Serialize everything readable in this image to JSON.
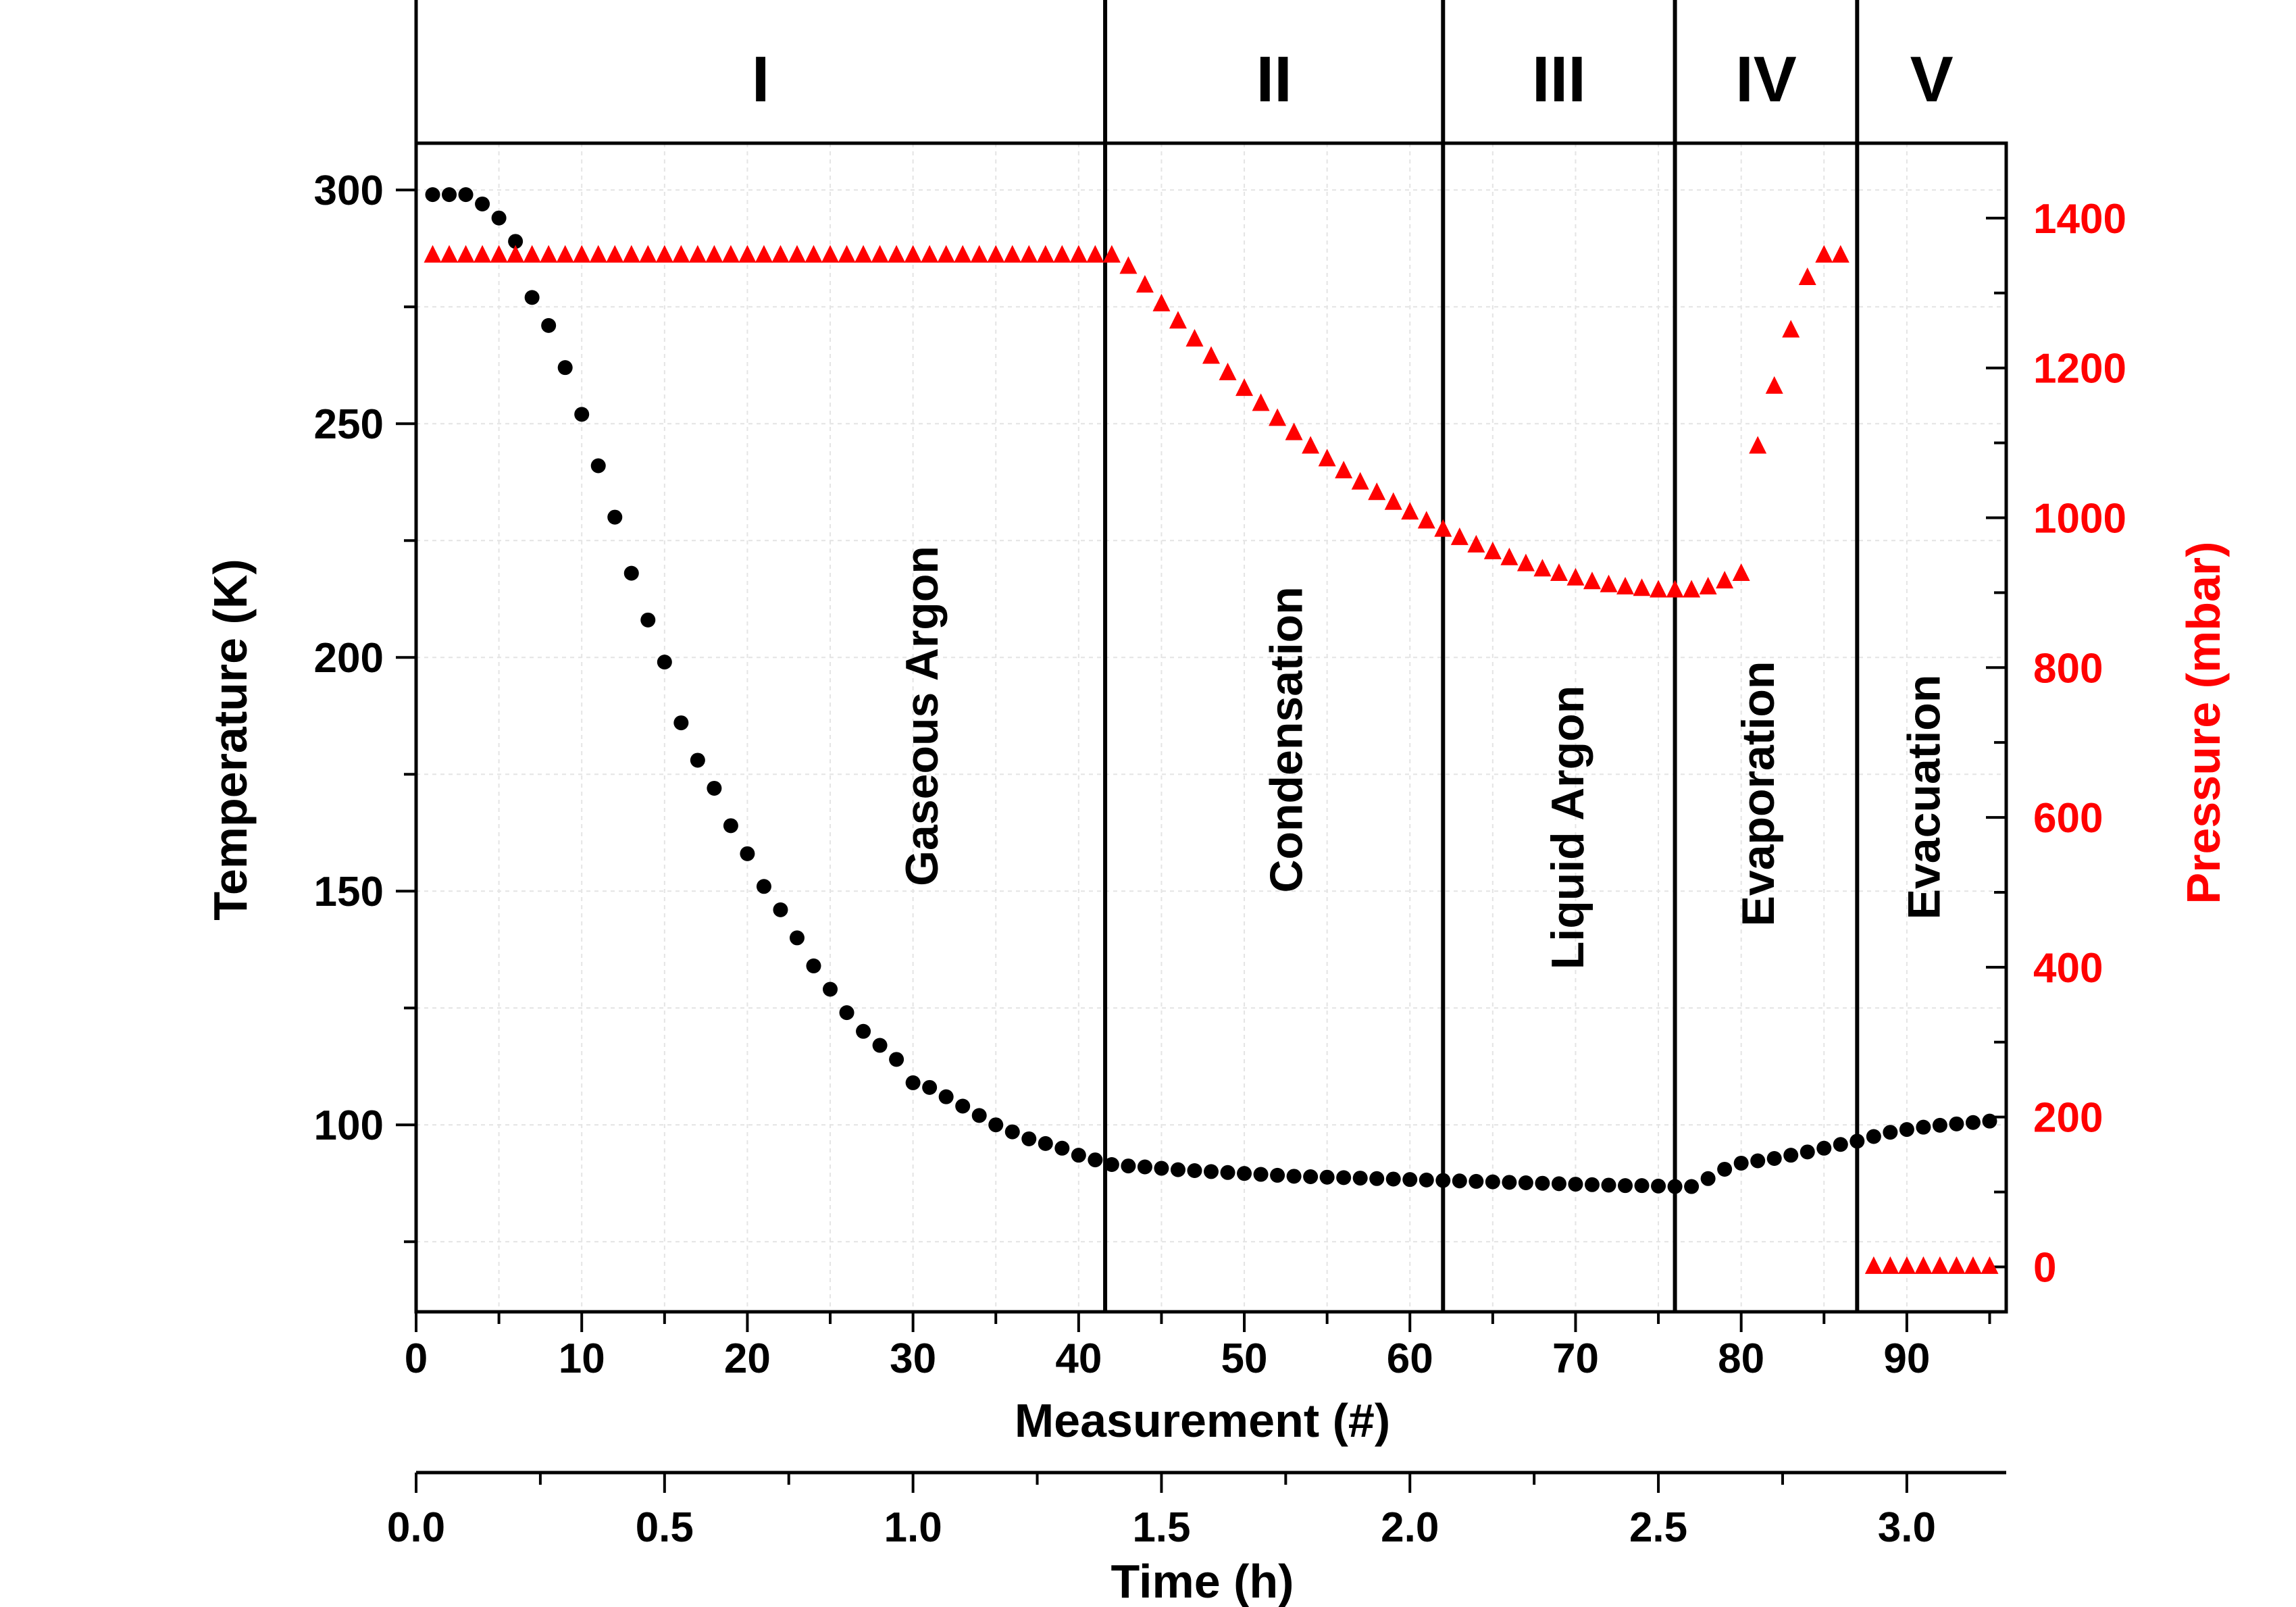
{
  "chart_data": {
    "type": "scatter",
    "x_axis": {
      "label": "Measurement (#)",
      "range": [
        0,
        96
      ],
      "ticks": [
        0,
        10,
        20,
        30,
        40,
        50,
        60,
        70,
        80,
        90
      ],
      "tick_labels": [
        "0",
        "10",
        "20",
        "30",
        "40",
        "50",
        "60",
        "70",
        "80",
        "90"
      ]
    },
    "secondary_x_axis": {
      "label": "Time (h)",
      "range": [
        0,
        3.2
      ],
      "ticks": [
        0,
        0.5,
        1.0,
        1.5,
        2.0,
        2.5,
        3.0
      ],
      "tick_labels": [
        "0.0",
        "0.5",
        "1.0",
        "1.5",
        "2.0",
        "2.5",
        "3.0"
      ]
    },
    "y_axis_left": {
      "label": "Temperature (K)",
      "range": [
        60,
        310
      ],
      "ticks": [
        100,
        150,
        200,
        250,
        300
      ],
      "tick_labels": [
        "100",
        "150",
        "200",
        "250",
        "300"
      ]
    },
    "y_axis_right": {
      "label": "Pressure (mbar)",
      "range": [
        -60,
        1500
      ],
      "ticks": [
        0,
        200,
        400,
        600,
        800,
        1000,
        1200,
        1400
      ],
      "tick_labels": [
        "0",
        "200",
        "400",
        "600",
        "800",
        "1000",
        "1200",
        "1400"
      ],
      "color": "#ff0000"
    },
    "phase_boundaries": [
      41.6,
      62,
      76,
      87
    ],
    "phases": [
      {
        "numeral": "I",
        "label": "Gaseous Argon",
        "start": 0,
        "end": 41.6
      },
      {
        "numeral": "II",
        "label": "Condensation",
        "start": 41.6,
        "end": 62
      },
      {
        "numeral": "III",
        "label": "Liquid Argon",
        "start": 62,
        "end": 76
      },
      {
        "numeral": "IV",
        "label": "Evaporation",
        "start": 76,
        "end": 87
      },
      {
        "numeral": "V",
        "label": "Evacuation",
        "start": 87,
        "end": 96
      }
    ],
    "series": [
      {
        "name": "Temperature",
        "axis": "left",
        "marker": "circle",
        "color": "#000000",
        "points": [
          [
            1,
            299
          ],
          [
            2,
            299
          ],
          [
            3,
            299
          ],
          [
            4,
            297
          ],
          [
            5,
            294
          ],
          [
            6,
            289
          ],
          [
            7,
            277
          ],
          [
            8,
            271
          ],
          [
            9,
            262
          ],
          [
            10,
            252
          ],
          [
            11,
            241
          ],
          [
            12,
            230
          ],
          [
            13,
            218
          ],
          [
            14,
            208
          ],
          [
            15,
            199
          ],
          [
            16,
            186
          ],
          [
            17,
            178
          ],
          [
            18,
            172
          ],
          [
            19,
            164
          ],
          [
            20,
            158
          ],
          [
            21,
            151
          ],
          [
            22,
            146
          ],
          [
            23,
            140
          ],
          [
            24,
            134
          ],
          [
            25,
            129
          ],
          [
            26,
            124
          ],
          [
            27,
            120
          ],
          [
            28,
            117
          ],
          [
            29,
            114
          ],
          [
            30,
            109
          ],
          [
            31,
            108
          ],
          [
            32,
            106
          ],
          [
            33,
            104
          ],
          [
            34,
            102
          ],
          [
            35,
            100
          ],
          [
            36,
            98.5
          ],
          [
            37,
            97
          ],
          [
            38,
            96
          ],
          [
            39,
            95
          ],
          [
            40,
            93.5
          ],
          [
            41,
            92.5
          ],
          [
            42,
            91.5
          ],
          [
            43,
            91.2
          ],
          [
            44,
            91
          ],
          [
            45,
            90.7
          ],
          [
            46,
            90.4
          ],
          [
            47,
            90.2
          ],
          [
            48,
            90
          ],
          [
            49,
            89.8
          ],
          [
            50,
            89.6
          ],
          [
            51,
            89.4
          ],
          [
            52,
            89.2
          ],
          [
            53,
            89
          ],
          [
            54,
            88.9
          ],
          [
            55,
            88.8
          ],
          [
            56,
            88.7
          ],
          [
            57,
            88.6
          ],
          [
            58,
            88.5
          ],
          [
            59,
            88.4
          ],
          [
            60,
            88.3
          ],
          [
            61,
            88.2
          ],
          [
            62,
            88.1
          ],
          [
            63,
            88
          ],
          [
            64,
            87.9
          ],
          [
            65,
            87.8
          ],
          [
            66,
            87.7
          ],
          [
            67,
            87.6
          ],
          [
            68,
            87.5
          ],
          [
            69,
            87.4
          ],
          [
            70,
            87.3
          ],
          [
            71,
            87.2
          ],
          [
            72,
            87.1
          ],
          [
            73,
            87
          ],
          [
            74,
            87
          ],
          [
            75,
            86.9
          ],
          [
            76,
            86.8
          ],
          [
            77,
            86.8
          ],
          [
            78,
            88.5
          ],
          [
            79,
            90.5
          ],
          [
            80,
            91.8
          ],
          [
            81,
            92.3
          ],
          [
            82,
            92.8
          ],
          [
            83,
            93.5
          ],
          [
            84,
            94.2
          ],
          [
            85,
            95
          ],
          [
            86,
            95.8
          ],
          [
            87,
            96.5
          ],
          [
            88,
            97.5
          ],
          [
            89,
            98.4
          ],
          [
            90,
            99
          ],
          [
            91,
            99.5
          ],
          [
            92,
            99.9
          ],
          [
            93,
            100.2
          ],
          [
            94,
            100.5
          ],
          [
            95,
            100.8
          ]
        ]
      },
      {
        "name": "Pressure",
        "axis": "right",
        "marker": "triangle",
        "color": "#ff0000",
        "points": [
          [
            1,
            1350
          ],
          [
            2,
            1350
          ],
          [
            3,
            1350
          ],
          [
            4,
            1350
          ],
          [
            5,
            1350
          ],
          [
            6,
            1350
          ],
          [
            7,
            1350
          ],
          [
            8,
            1350
          ],
          [
            9,
            1350
          ],
          [
            10,
            1350
          ],
          [
            11,
            1350
          ],
          [
            12,
            1350
          ],
          [
            13,
            1350
          ],
          [
            14,
            1350
          ],
          [
            15,
            1350
          ],
          [
            16,
            1350
          ],
          [
            17,
            1350
          ],
          [
            18,
            1350
          ],
          [
            19,
            1350
          ],
          [
            20,
            1350
          ],
          [
            21,
            1350
          ],
          [
            22,
            1350
          ],
          [
            23,
            1350
          ],
          [
            24,
            1350
          ],
          [
            25,
            1350
          ],
          [
            26,
            1350
          ],
          [
            27,
            1350
          ],
          [
            28,
            1350
          ],
          [
            29,
            1350
          ],
          [
            30,
            1350
          ],
          [
            31,
            1350
          ],
          [
            32,
            1350
          ],
          [
            33,
            1350
          ],
          [
            34,
            1350
          ],
          [
            35,
            1350
          ],
          [
            36,
            1350
          ],
          [
            37,
            1350
          ],
          [
            38,
            1350
          ],
          [
            39,
            1350
          ],
          [
            40,
            1350
          ],
          [
            41,
            1350
          ],
          [
            42,
            1350
          ],
          [
            43,
            1335
          ],
          [
            44,
            1310
          ],
          [
            45,
            1285
          ],
          [
            46,
            1262
          ],
          [
            47,
            1238
          ],
          [
            48,
            1215
          ],
          [
            49,
            1193
          ],
          [
            50,
            1172
          ],
          [
            51,
            1152
          ],
          [
            52,
            1132
          ],
          [
            53,
            1113
          ],
          [
            54,
            1095
          ],
          [
            55,
            1078
          ],
          [
            56,
            1062
          ],
          [
            57,
            1047
          ],
          [
            58,
            1033
          ],
          [
            59,
            1020
          ],
          [
            60,
            1007
          ],
          [
            61,
            995
          ],
          [
            62,
            984
          ],
          [
            63,
            973
          ],
          [
            64,
            963
          ],
          [
            65,
            954
          ],
          [
            66,
            946
          ],
          [
            67,
            938
          ],
          [
            68,
            931
          ],
          [
            69,
            925
          ],
          [
            70,
            919
          ],
          [
            71,
            914
          ],
          [
            72,
            910
          ],
          [
            73,
            907
          ],
          [
            74,
            905
          ],
          [
            75,
            903
          ],
          [
            76,
            903
          ],
          [
            77,
            903
          ],
          [
            78,
            907
          ],
          [
            79,
            915
          ],
          [
            80,
            925
          ],
          [
            81,
            1095
          ],
          [
            82,
            1175
          ],
          [
            83,
            1250
          ],
          [
            84,
            1320
          ],
          [
            85,
            1350
          ],
          [
            86,
            1350
          ],
          [
            88,
            0
          ],
          [
            89,
            0
          ],
          [
            90,
            0
          ],
          [
            91,
            0
          ],
          [
            92,
            0
          ],
          [
            93,
            0
          ],
          [
            94,
            0
          ],
          [
            95,
            0
          ]
        ]
      }
    ]
  }
}
